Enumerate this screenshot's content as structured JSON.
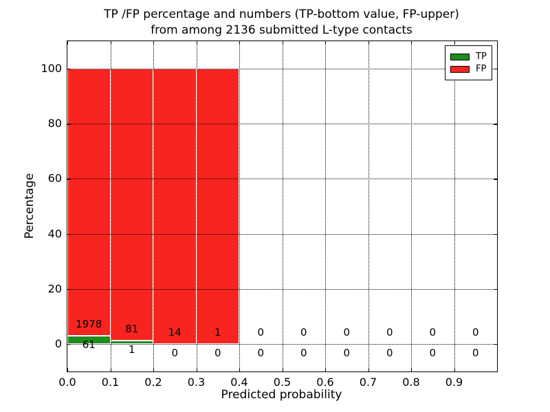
{
  "chart_data": {
    "type": "bar",
    "stacked": true,
    "title_line1": "TP /FP percentage and numbers (TP-bottom value, FP-upper)",
    "title_line2": "from among 2136 submitted L-type contacts",
    "xlabel": "Predicted probability",
    "ylabel": "Percentage",
    "total_contacts": 2136,
    "xlim": [
      0.0,
      1.0
    ],
    "ylim": [
      -10,
      110
    ],
    "xticks": [
      0.0,
      0.1,
      0.2,
      0.3,
      0.4,
      0.5,
      0.6,
      0.7,
      0.8,
      0.9
    ],
    "xtick_labels": [
      "0.0",
      "0.1",
      "0.2",
      "0.3",
      "0.4",
      "0.5",
      "0.6",
      "0.7",
      "0.8",
      "0.9"
    ],
    "yticks": [
      0,
      20,
      40,
      60,
      80,
      100
    ],
    "ytick_labels": [
      "0",
      "20",
      "40",
      "60",
      "80",
      "100"
    ],
    "grid": true,
    "grid_style": "dotted",
    "grid_color": "#000000",
    "bar_edge_color": "#ffffff",
    "legend_position": "upper right",
    "series": [
      {
        "name": "TP",
        "color": "#1e8c1e",
        "position": "bottom"
      },
      {
        "name": "FP",
        "color": "#f8241f",
        "position": "upper"
      }
    ],
    "bins": [
      {
        "range": [
          0.0,
          0.1
        ],
        "tp": 61,
        "fp": 1978
      },
      {
        "range": [
          0.1,
          0.2
        ],
        "tp": 1,
        "fp": 81
      },
      {
        "range": [
          0.2,
          0.3
        ],
        "tp": 0,
        "fp": 14
      },
      {
        "range": [
          0.3,
          0.4
        ],
        "tp": 0,
        "fp": 1
      },
      {
        "range": [
          0.4,
          0.5
        ],
        "tp": 0,
        "fp": 0
      },
      {
        "range": [
          0.5,
          0.6
        ],
        "tp": 0,
        "fp": 0
      },
      {
        "range": [
          0.6,
          0.7
        ],
        "tp": 0,
        "fp": 0
      },
      {
        "range": [
          0.7,
          0.8
        ],
        "tp": 0,
        "fp": 0
      },
      {
        "range": [
          0.8,
          0.9
        ],
        "tp": 0,
        "fp": 0
      },
      {
        "range": [
          0.9,
          1.0
        ],
        "tp": 0,
        "fp": 0
      }
    ]
  }
}
